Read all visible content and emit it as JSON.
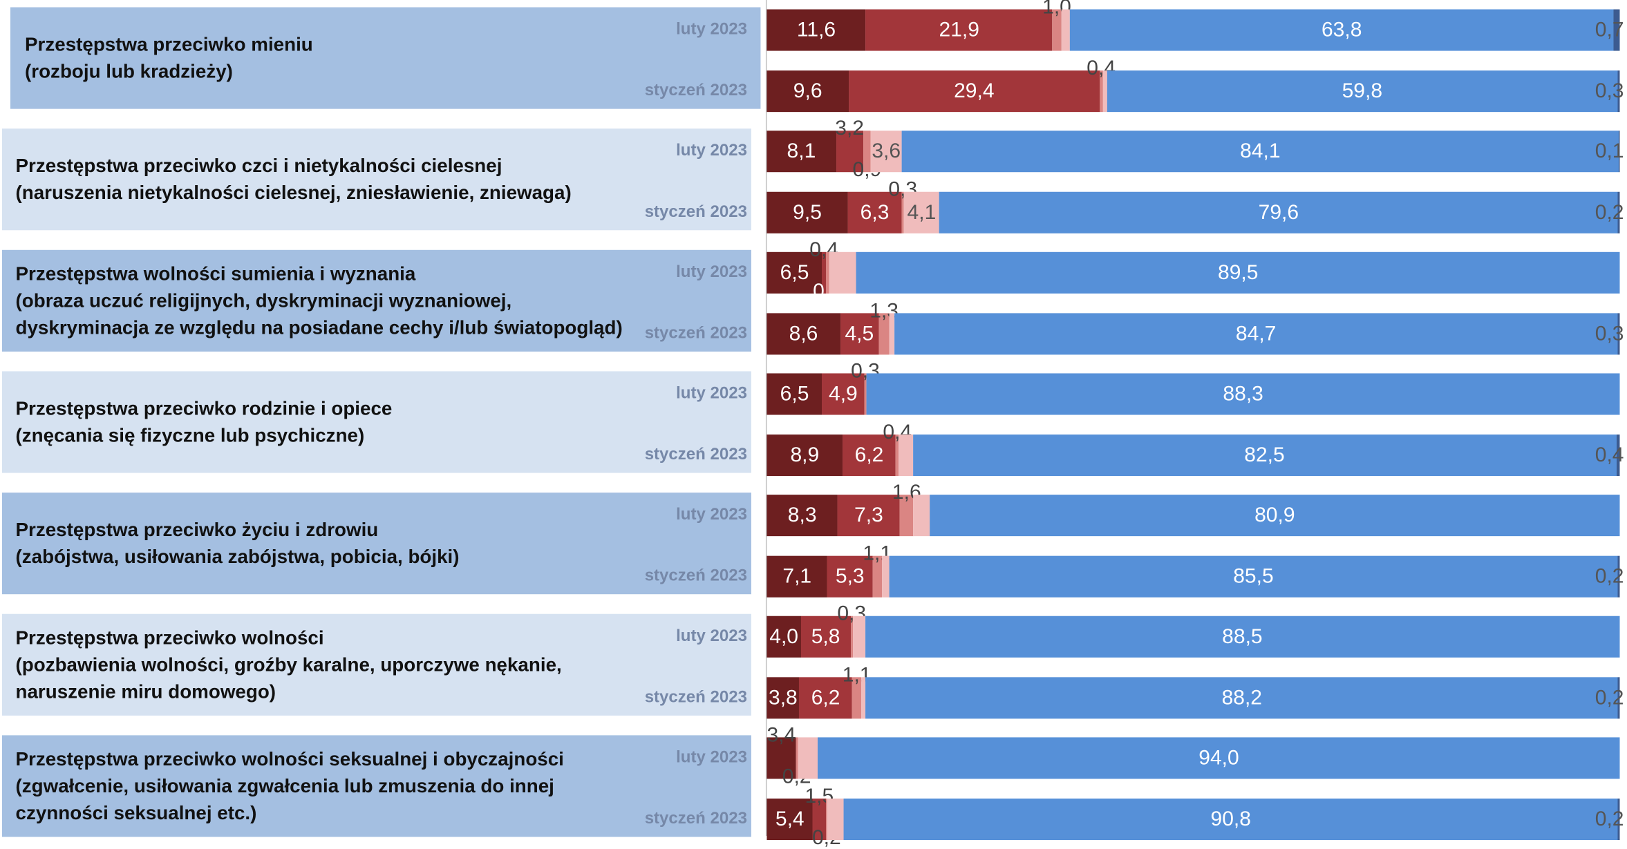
{
  "chart_data": {
    "type": "bar",
    "orientation": "horizontal",
    "stacked": true,
    "groups": [
      "Przestępstwa przeciwko mieniu\n(rozboju lub kradzieży)",
      "Przestępstwa przeciwko czci i nietykalności cielesnej\n(naruszenia nietykalności cielesnej, zniesławienie, zniewaga)",
      "Przestępstwa wolności sumienia i wyznania\n(obraza uczuć religijnych, dyskryminacji wyznaniowej,\ndyskryminacja ze względu na posiadane cechy i/lub  światopogląd)",
      "Przestępstwa przeciwko rodzinie i opiece\n(znęcania się fizyczne lub psychiczne)",
      "Przestępstwa przeciwko życiu i zdrowiu\n(zabójstwa, usiłowania zabójstwa, pobicia, bójki)",
      "Przestępstwa przeciwko wolności\n(pozbawienia wolności, groźby karalne, uporczywe nękanie,\nnaruszenie miru domowego)",
      "Przestępstwa przeciwko wolności seksualnej i obyczajności\n(zgwałcenie, usiłowania zgwałcenia lub zmuszenia do innej\nczynności seksualnej etc.)"
    ],
    "categories": [
      "luty 2023",
      "styczeń 2023",
      "luty 2023",
      "styczeń 2023",
      "luty 2023",
      "styczeń 2023",
      "luty 2023",
      "styczeń 2023",
      "luty 2023",
      "styczeń 2023",
      "luty 2023",
      "styczeń 2023",
      "luty 2023",
      "styczeń 2023"
    ],
    "xlim": [
      0,
      100
    ],
    "series": [
      {
        "color": "#6d1f20",
        "values": [
          11.6,
          9.6,
          8.1,
          9.5,
          6.5,
          8.6,
          6.5,
          8.9,
          8.3,
          7.1,
          4.0,
          3.8,
          3.4,
          5.4
        ],
        "value_labels": [
          "11,6",
          "9,6",
          "8,1",
          "9,5",
          "6,5",
          "8,6",
          "6,5",
          "8,9",
          "8,3",
          "7,1",
          "4,0",
          "3,8",
          "3,4",
          "5,4"
        ]
      },
      {
        "color": "#a2363a",
        "values": [
          21.9,
          29.4,
          3.2,
          6.3,
          0.4,
          4.5,
          4.9,
          6.2,
          7.3,
          5.3,
          5.8,
          6.2,
          null,
          1.5
        ],
        "value_labels": [
          "21,9",
          "29,4",
          "3,2",
          "6,3",
          "0,4",
          "4,5",
          "4,9",
          "6,2",
          "7,3",
          "5,3",
          "5,8",
          "6,2",
          null,
          "1,5"
        ]
      },
      {
        "color": "#da8583",
        "values": [
          1.0,
          0.4,
          0.9,
          0.3,
          0.4,
          1.3,
          0.3,
          0.4,
          1.6,
          1.1,
          0.3,
          1.1,
          0.2,
          0.2
        ],
        "value_labels": [
          "1,0",
          "0,4",
          "0,9",
          "0,3",
          "0,4",
          "1,3",
          "0,3",
          "0,4",
          "1,6",
          "1,1",
          "0,3",
          "1,1",
          "0,2",
          "0,2"
        ]
      },
      {
        "color": "#f0bcbc",
        "values": [
          1.0,
          0.5,
          3.6,
          4.1,
          3.2,
          0.6,
          null,
          1.6,
          1.9,
          0.8,
          1.4,
          0.5,
          2.4,
          1.9
        ],
        "value_labels": [
          "1,0",
          "0,5",
          "3,6",
          "4,1",
          "3,2",
          "0,6",
          null,
          "1,6",
          "1,9",
          "0,8",
          "1,4",
          "0,5",
          "2,4",
          "1,9"
        ]
      },
      {
        "color": "#5690d8",
        "values": [
          63.8,
          59.8,
          84.1,
          79.6,
          89.5,
          84.7,
          88.3,
          82.5,
          80.9,
          85.5,
          88.5,
          88.2,
          94.0,
          90.8
        ],
        "value_labels": [
          "63,8",
          "59,8",
          "84,1",
          "79,6",
          "89,5",
          "84,7",
          "88,3",
          "82,5",
          "80,9",
          "85,5",
          "88,5",
          "88,2",
          "94,0",
          "90,8"
        ]
      },
      {
        "color": "#3c5b90",
        "values": [
          0.7,
          0.3,
          0.1,
          0.2,
          null,
          0.3,
          null,
          0.4,
          null,
          0.2,
          null,
          0.2,
          null,
          0.2
        ],
        "value_labels": [
          "0,7",
          "0,3",
          "0,1",
          "0,2",
          null,
          "0,3",
          null,
          "0,4",
          null,
          "0,2",
          null,
          "0,2",
          null,
          "0,2"
        ]
      }
    ]
  }
}
